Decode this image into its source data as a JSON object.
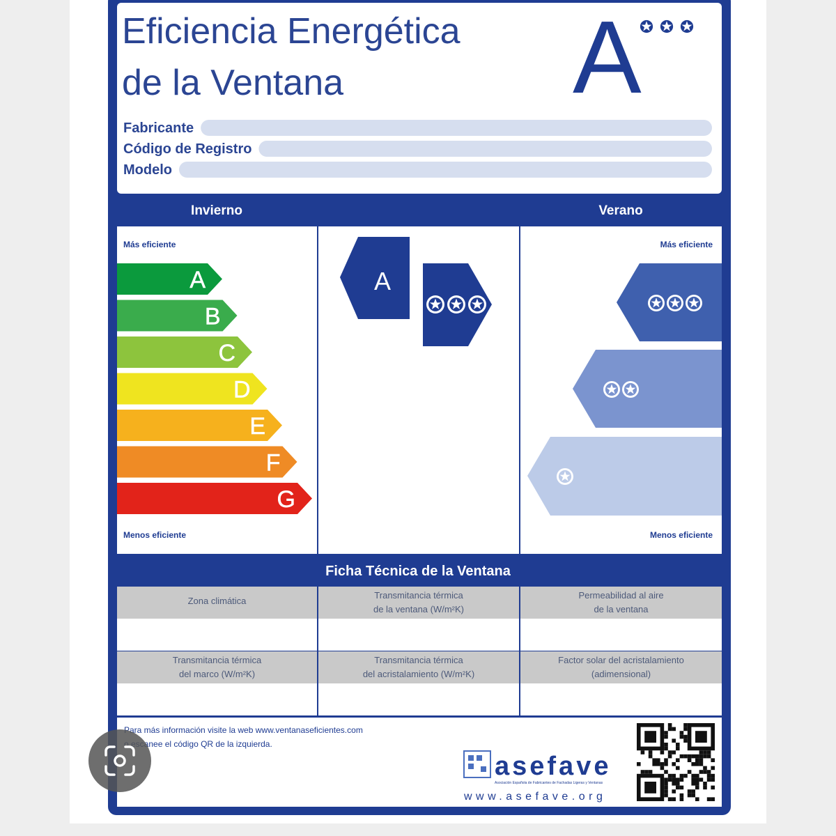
{
  "title": {
    "line1": "Eficiencia Energética",
    "line2": "de la Ventana"
  },
  "rating": "A",
  "fields": [
    "Fabricante",
    "Código de Registro",
    "Modelo"
  ],
  "columns": {
    "winter": "Invierno",
    "summer": "Verano"
  },
  "winter_scale": {
    "top": "Más eficiente",
    "bottom": "Menos eficiente",
    "classes": [
      "A",
      "B",
      "C",
      "D",
      "E",
      "F",
      "G"
    ]
  },
  "center_badge": "A",
  "summer_scale": {
    "top": "Más eficiente",
    "bottom": "Menos eficiente"
  },
  "technical_sheet": {
    "title": "Ficha Técnica de la Ventana",
    "cells": [
      [
        "Zona climática"
      ],
      [
        "Transmitancia térmica",
        "de la ventana (W/m²K)"
      ],
      [
        "Permeabilidad al aire",
        "de la ventana"
      ],
      [
        "Transmitancia térmica",
        "del marco (W/m²K)"
      ],
      [
        "Transmitancia térmica",
        "del acristalamiento (W/m²K)"
      ],
      [
        "Factor solar del acristalamiento",
        "(adimensional)"
      ]
    ]
  },
  "footer": {
    "info": [
      "Para más información visite la web www.ventanaseficientes.com",
      "o escanee el código QR de la izquierda."
    ],
    "brand": "asefave",
    "brand_tagline": "Asociación Española de Fabricantes de Fachadas Ligeras y Ventanas",
    "url": "www.asefave.org"
  }
}
